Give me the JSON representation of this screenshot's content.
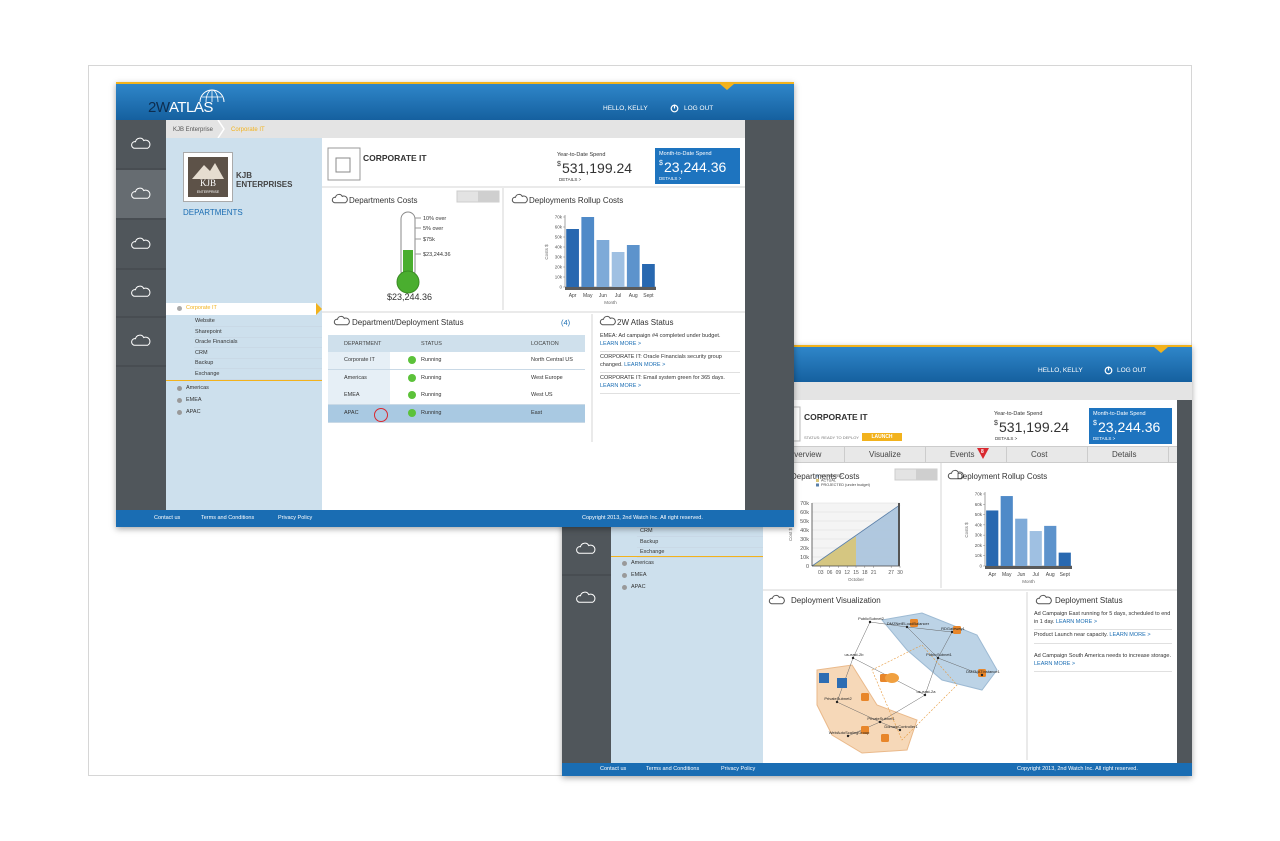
{
  "screen1": {
    "logo": [
      "2W",
      "ATLAS"
    ],
    "greeting": "HELLO, KELLY",
    "logout": "LOG OUT",
    "breadcrumb": [
      "KJB Enterprise",
      "Corporate IT"
    ],
    "company": {
      "initials": "KJB",
      "tag": "ENTERPRISE",
      "name": [
        "KJB",
        "ENTERPRISES"
      ]
    },
    "departments_title": "DEPARTMENTS",
    "menu": {
      "selected": "Corporate IT",
      "children": [
        "Website",
        "Sharepoint",
        "Oracle Financials",
        "CRM",
        "Backup",
        "Exchange"
      ],
      "others": [
        "Americas",
        "EMEA",
        "APAC"
      ]
    },
    "header": {
      "title": "CORPORATE IT",
      "ytd_label": "Year-to-Date Spend",
      "currency": "$",
      "ytd": "531,199.24",
      "details": "DETAILS >",
      "mtd_label": "Month-to-Date Spend",
      "mtd": "23,244.36"
    },
    "dept_costs": {
      "title": "Departments Costs",
      "markers": [
        "10% over",
        "5% over",
        "$75k",
        "$23,244.36"
      ],
      "total": "$23,244.36"
    },
    "rollup": {
      "title": "Deployments Rollup Costs",
      "y_label": "Costs $",
      "x_label": "Month",
      "categories": [
        "Apr",
        "May",
        "Jun",
        "Jul",
        "Aug",
        "Sept"
      ],
      "values": [
        58000,
        70000,
        47000,
        35000,
        42000,
        23000
      ],
      "colors": [
        "#2868b0",
        "#4f8ac8",
        "#7eaad8",
        "#9fc0e2",
        "#5d93cc",
        "#2868b0"
      ],
      "ylim": [
        0,
        70000
      ],
      "yticks": [
        0,
        {
          "value": 10000,
          "label": "10k"
        },
        {
          "value": 20000,
          "label": "20k"
        },
        {
          "value": 30000,
          "label": "30k"
        },
        {
          "value": 40000,
          "label": "40k"
        },
        {
          "value": 50000,
          "label": "50k"
        },
        {
          "value": 60000,
          "label": "60k"
        },
        {
          "value": 70000,
          "label": "70k"
        }
      ]
    },
    "status": {
      "title": "Department/Deployment Status",
      "count": "(4)",
      "columns": [
        "DEPARTMENT",
        "STATUS",
        "LOCATION"
      ],
      "rows": [
        [
          "Corporate IT",
          "Running",
          "North Central US"
        ],
        [
          "Americas",
          "Running",
          "West Europe"
        ],
        [
          "EMEA",
          "Running",
          "West US"
        ],
        [
          "APAC",
          "Running",
          "East"
        ]
      ]
    },
    "atlas_status": {
      "title": "2W Atlas Status",
      "items": [
        {
          "text": "EMEA: Ad campaign #4 completed under budget.",
          "link": "LEARN MORE >"
        },
        {
          "text": "CORPORATE IT: Oracle Financials security group changed.",
          "link": "LEARN MORE >"
        },
        {
          "text": "CORPORATE IT: Email system green for 365 days.",
          "link": "LEARN MORE >"
        }
      ]
    },
    "footer": {
      "links": [
        "Contact us",
        "Terms and Conditions",
        "Privacy Policy"
      ],
      "copyright": "Copyright 2013, 2nd Watch Inc. All right reserved."
    }
  },
  "screen2": {
    "greeting": "HELLO, KELLY",
    "logout": "LOG OUT",
    "menu": {
      "children": [
        "CRM",
        "Backup",
        "Exchange"
      ],
      "others": [
        "Americas",
        "EMEA",
        "APAC"
      ]
    },
    "header": {
      "title": "CORPORATE IT",
      "status": "STATUS: READY TO DEPLOY",
      "launch": "LAUNCH",
      "ytd_label": "Year-to-Date Spend",
      "currency": "$",
      "ytd": "531,199.24",
      "details": "DETAILS >",
      "mtd_label": "Month-to-Date Spend",
      "mtd": "23,244.36"
    },
    "tabs": [
      "Overview",
      "Visualize",
      "Events",
      "Cost",
      "Details"
    ],
    "events_badge": "8",
    "dept_costs": {
      "title": "Departments Costs",
      "y_label": "Cost $",
      "x_label": "October",
      "xlim": [
        0,
        30
      ],
      "xticks": [
        {
          "value": 3,
          "label": "03"
        },
        {
          "value": 6,
          "label": "06"
        },
        {
          "value": 9,
          "label": "09"
        },
        12,
        15,
        18,
        21,
        27,
        30
      ],
      "ylim": [
        0,
        70000
      ],
      "yticks": [
        0,
        {
          "value": 10000,
          "label": "10k"
        },
        {
          "value": 20000,
          "label": "20k"
        },
        {
          "value": 30000,
          "label": "30k"
        },
        {
          "value": 40000,
          "label": "40k"
        },
        {
          "value": 50000,
          "label": "50k"
        },
        {
          "value": 60000,
          "label": "60k"
        },
        {
          "value": 70000,
          "label": "70k"
        }
      ],
      "series": [
        {
          "name": "ESTIMATED",
          "kind": "area",
          "color": "#a9c3dd",
          "x": [
            0,
            30
          ],
          "values": [
            0,
            68000
          ]
        },
        {
          "name": "ACTUAL",
          "kind": "area",
          "color": "#d9c577",
          "x": [
            0,
            15,
            15
          ],
          "values": [
            0,
            33000,
            0
          ]
        },
        {
          "name": "PROJECTED (under budget)",
          "kind": "line",
          "color": "#5a7fa8",
          "x": [
            0,
            30
          ],
          "values": [
            0,
            68000
          ]
        }
      ]
    },
    "rollup": {
      "title": "Deployment Rollup Costs",
      "y_label": "Costs $",
      "x_label": "Month",
      "categories": [
        "Apr",
        "May",
        "Jun",
        "Jul",
        "Aug",
        "Sept"
      ],
      "values": [
        54000,
        68000,
        46000,
        34000,
        39000,
        13000
      ],
      "colors": [
        "#2868b0",
        "#4f8ac8",
        "#7eaad8",
        "#9fc0e2",
        "#5d93cc",
        "#2868b0"
      ],
      "ylim": [
        0,
        70000
      ],
      "yticks": [
        0,
        {
          "value": 10000,
          "label": "10k"
        },
        {
          "value": 20000,
          "label": "20k"
        },
        {
          "value": 30000,
          "label": "30k"
        },
        {
          "value": 40000,
          "label": "40k"
        },
        {
          "value": 50000,
          "label": "50k"
        },
        {
          "value": 60000,
          "label": "60k"
        },
        {
          "value": 70000,
          "label": "70k"
        }
      ]
    },
    "visualization": {
      "title": "Deployment Visualization",
      "nodes": [
        "PublicSubnet2",
        "DMZNetELoadBalancer",
        "RDGateway1",
        "PublicSubnet1",
        "DMZNATInstance1",
        "us-east-2b",
        "us-east-2a",
        "PrivateSubnet2",
        "PrivateSubnet1",
        "WebAutoScalingGroup",
        "DomainController1"
      ]
    },
    "deployment_status": {
      "title": "Deployment Status",
      "items": [
        {
          "text": "Ad Campaign East running for 5 days, scheduled to end in 1 day.",
          "link": "LEARN MORE >"
        },
        {
          "text": "Product Launch near capacity.",
          "link": "LEARN MORE >"
        },
        {
          "text": "Ad Campaign South America needs to increase storage.",
          "link": "LEARN MORE >"
        }
      ]
    },
    "footer": {
      "links": [
        "Contact us",
        "Terms and Conditions",
        "Privacy Policy"
      ],
      "copyright": "Copyright 2013, 2nd Watch Inc. All right reserved."
    }
  }
}
